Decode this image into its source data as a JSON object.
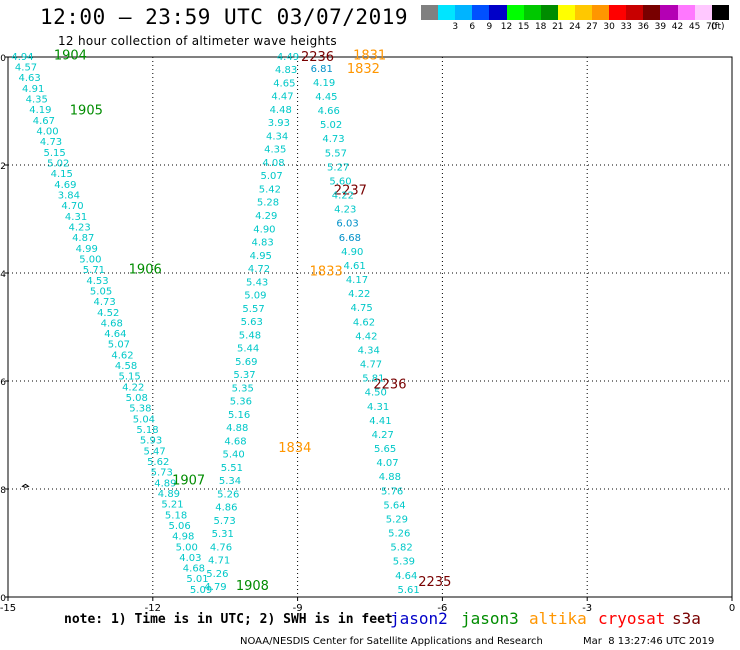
{
  "header": {
    "title": "12:00 – 23:59 UTC 03/07/2019",
    "subtitle": "12 hour collection of altimeter wave heights"
  },
  "color_scale": {
    "unit": "(ft)",
    "bins": [
      {
        "label": "",
        "color": "#808080"
      },
      {
        "label": "3",
        "color": "#00e5ff"
      },
      {
        "label": "6",
        "color": "#00b4ff"
      },
      {
        "label": "9",
        "color": "#0050ff"
      },
      {
        "label": "12",
        "color": "#0000c8"
      },
      {
        "label": "15",
        "color": "#00ff00"
      },
      {
        "label": "18",
        "color": "#00c800"
      },
      {
        "label": "21",
        "color": "#008c00"
      },
      {
        "label": "24",
        "color": "#ffff00"
      },
      {
        "label": "27",
        "color": "#ffc800"
      },
      {
        "label": "30",
        "color": "#ff9600"
      },
      {
        "label": "33",
        "color": "#ff0000"
      },
      {
        "label": "36",
        "color": "#c80000"
      },
      {
        "label": "39",
        "color": "#780000"
      },
      {
        "label": "42",
        "color": "#b400b4"
      },
      {
        "label": "45",
        "color": "#ff78ff"
      },
      {
        "label": "70",
        "color": "#ffc8ff"
      },
      {
        "label": "",
        "color": "#000000"
      }
    ]
  },
  "map": {
    "x_ticks": [
      "-15",
      "-12",
      "-9",
      "-6",
      "-3",
      "0"
    ],
    "y_ticks": [
      "0",
      "-2",
      "-4",
      "-6",
      "-8",
      "-10"
    ],
    "x_range": [
      -15,
      0
    ],
    "y_range": [
      -10,
      0
    ]
  },
  "colors": {
    "swh": "#00c8c8",
    "swh_dark": "#0090c8",
    "jason2": "#0000c8",
    "jason3": "#008c00",
    "altika": "#ff9600",
    "cryosat": "#ff0000",
    "s3a": "#780000"
  },
  "tracks": [
    {
      "satellite": "jason3",
      "times": [
        {
          "label": "1904",
          "lon": -14.05,
          "lat": 0.05
        },
        {
          "label": "1905",
          "lon": -13.72,
          "lat": -0.97
        },
        {
          "label": "1906",
          "lon": -12.5,
          "lat": -3.92
        },
        {
          "label": "1907",
          "lon": -11.6,
          "lat": -7.82
        },
        {
          "label": "1908",
          "lon": -10.28,
          "lat": -9.78
        }
      ],
      "values": [
        "4.94",
        "4.57",
        "4.63",
        "4.91",
        "4.35",
        "4.19",
        "4.67",
        "4.00",
        "4.73",
        "5.15",
        "5.02",
        "4.15",
        "4.69",
        "3.84",
        "4.70",
        "4.31",
        "4.23",
        "4.87",
        "4.99",
        "5.00",
        "5.71",
        "4.53",
        "5.05",
        "4.73",
        "4.52",
        "4.68",
        "4.64",
        "5.07",
        "4.62",
        "4.58",
        "5.15",
        "4.22",
        "5.08",
        "5.38",
        "5.04",
        "5.18",
        "5.93",
        "5.47",
        "5.62",
        "5.73",
        "4.89",
        "4.89",
        "5.21",
        "5.18",
        "5.06",
        "4.98",
        "5.00",
        "4.03",
        "4.68",
        "5.01",
        "5.09"
      ],
      "lon_start": -14.7,
      "lat_start": 0.02,
      "lon_end": -11.0,
      "lat_end": -9.85
    },
    {
      "satellite": "s3a",
      "times": [
        {
          "label": "2236",
          "lon": -8.93,
          "lat": 0.02
        },
        {
          "label": "2237",
          "lon": -8.25,
          "lat": -2.45
        },
        {
          "label": "2236",
          "lon": -7.43,
          "lat": -6.05
        },
        {
          "label": "2235",
          "lon": -6.5,
          "lat": -9.7
        }
      ],
      "values": [
        "4.49",
        "4.83",
        "4.65",
        "4.47",
        "4.48",
        "3.93",
        "4.34",
        "4.35",
        "4.08",
        "5.07",
        "5.42",
        "5.28",
        "4.29",
        "4.90",
        "4.83",
        "4.95",
        "4.72",
        "5.43",
        "5.09",
        "5.57",
        "5.63",
        "5.48",
        "5.44",
        "5.69",
        "5.37",
        "5.35",
        "5.36",
        "5.16",
        "4.88",
        "4.68",
        "5.40",
        "5.51",
        "5.34",
        "5.26",
        "4.86",
        "5.73",
        "5.31",
        "4.76",
        "4.71",
        "5.26",
        "4.79"
      ],
      "lon_start": -9.2,
      "lat_start": 0.02,
      "lon_end": -10.7,
      "lat_end": -9.8
    },
    {
      "satellite": "altika",
      "times": [
        {
          "label": "1831",
          "lon": -7.85,
          "lat": 0.05
        },
        {
          "label": "1832",
          "lon": -7.98,
          "lat": -0.2
        },
        {
          "label": "1833",
          "lon": -8.75,
          "lat": -3.95
        },
        {
          "label": "1834",
          "lon": -9.4,
          "lat": -7.22
        }
      ],
      "values": [
        "6.81",
        "4.19",
        "4.45",
        "4.66",
        "5.02",
        "4.73",
        "5.57",
        "5.27",
        "5.60",
        "4.22",
        "4.23",
        "6.03",
        "6.68",
        "4.90",
        "4.61",
        "4.17",
        "4.22",
        "4.75",
        "4.62",
        "4.42",
        "4.34",
        "4.77",
        "5.81",
        "4.50",
        "4.31",
        "4.41",
        "4.27",
        "5.65",
        "4.07",
        "4.88",
        "5.76",
        "5.64",
        "5.29",
        "5.26",
        "5.82",
        "5.39",
        "4.64",
        "5.61"
      ],
      "lon_start": -8.5,
      "lat_start": -0.2,
      "lon_end": -6.7,
      "lat_end": -9.85
    }
  ],
  "footer": {
    "note": "note: 1) Time is in UTC; 2) SWH is in feet",
    "satellites": [
      {
        "name": "jason2",
        "color": "#0000c8"
      },
      {
        "name": "jason3",
        "color": "#008c00"
      },
      {
        "name": "altika",
        "color": "#ff9600"
      },
      {
        "name": "cryosat",
        "color": "#ff0000"
      },
      {
        "name": "s3a",
        "color": "#780000"
      }
    ],
    "credit": "NOAA/NESDIS Center for Satellite Applications and Research",
    "timestamp": "Mar  8 13:27:46 UTC 2019"
  }
}
